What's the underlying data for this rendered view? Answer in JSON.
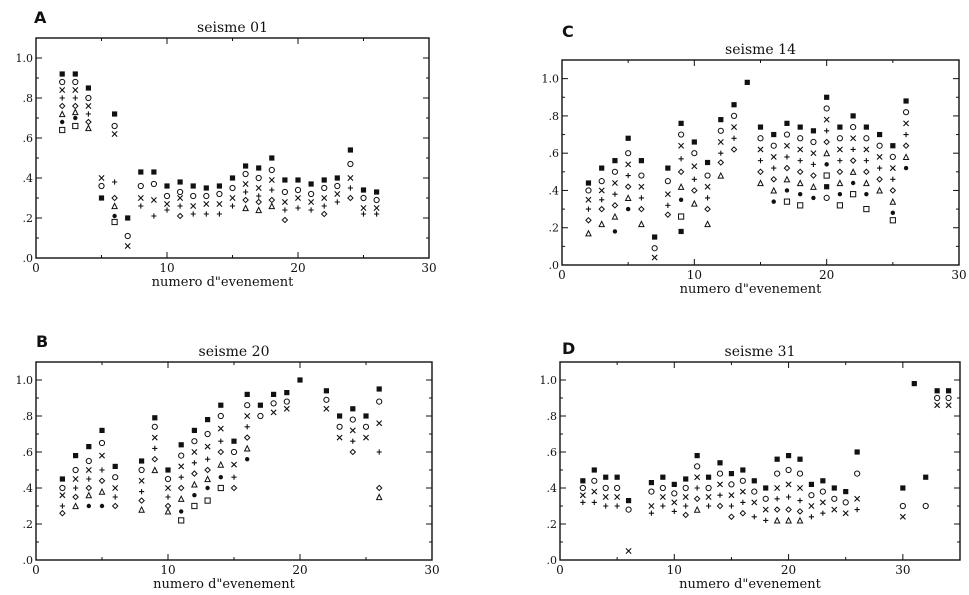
{
  "chart_data": [
    {
      "panel_letter": "A",
      "title": "seisme 01",
      "type": "scatter",
      "xlabel": "numero d\"evenement",
      "ylabel": "",
      "xlim": [
        0,
        30
      ],
      "ylim": [
        0,
        1.1
      ],
      "x_ticks": [
        "0",
        "10",
        "20",
        "30"
      ],
      "y_ticks": [
        ".0",
        ".2",
        ".4",
        ".6",
        ".8",
        "1.0"
      ],
      "columns": [
        {
          "x": 2,
          "values": [
            0.92,
            0.88,
            0.84,
            0.8,
            0.76,
            0.72,
            0.68,
            0.64
          ]
        },
        {
          "x": 3,
          "values": [
            0.92,
            0.88,
            0.84,
            0.8,
            0.76,
            0.73,
            0.7,
            0.66
          ]
        },
        {
          "x": 4,
          "values": [
            0.85,
            0.8,
            0.76,
            0.72,
            0.68,
            0.65
          ]
        },
        {
          "x": 5,
          "values": [
            0.3,
            0.36,
            0.4
          ]
        },
        {
          "x": 6,
          "values": [
            0.72,
            0.66,
            0.62,
            0.38,
            0.3,
            0.26,
            0.21,
            0.18
          ]
        },
        {
          "x": 7,
          "values": [
            0.2,
            0.11,
            0.06
          ]
        },
        {
          "x": 8,
          "values": [
            0.43,
            0.36,
            0.3,
            0.26
          ]
        },
        {
          "x": 9,
          "values": [
            0.43,
            0.37,
            0.29,
            0.21
          ]
        },
        {
          "x": 10,
          "values": [
            0.36,
            0.31,
            0.27,
            0.24
          ]
        },
        {
          "x": 11,
          "values": [
            0.38,
            0.33,
            0.3,
            0.26,
            0.21
          ]
        },
        {
          "x": 12,
          "values": [
            0.36,
            0.31,
            0.26,
            0.22
          ]
        },
        {
          "x": 13,
          "values": [
            0.35,
            0.31,
            0.27,
            0.22
          ]
        },
        {
          "x": 14,
          "values": [
            0.36,
            0.32,
            0.27,
            0.22
          ]
        },
        {
          "x": 15,
          "values": [
            0.4,
            0.35,
            0.3,
            0.26
          ]
        },
        {
          "x": 16,
          "values": [
            0.46,
            0.42,
            0.37,
            0.33,
            0.29,
            0.25
          ]
        },
        {
          "x": 17,
          "values": [
            0.45,
            0.4,
            0.35,
            0.31,
            0.28,
            0.24
          ]
        },
        {
          "x": 18,
          "values": [
            0.5,
            0.44,
            0.39,
            0.34,
            0.29,
            0.26
          ]
        },
        {
          "x": 19,
          "values": [
            0.39,
            0.33,
            0.28,
            0.24,
            0.19
          ]
        },
        {
          "x": 20,
          "values": [
            0.39,
            0.34,
            0.3,
            0.25
          ]
        },
        {
          "x": 21,
          "values": [
            0.37,
            0.32,
            0.28,
            0.24
          ]
        },
        {
          "x": 22,
          "values": [
            0.39,
            0.35,
            0.3,
            0.26,
            0.22
          ]
        },
        {
          "x": 23,
          "values": [
            0.4,
            0.36,
            0.32,
            0.28
          ]
        },
        {
          "x": 24,
          "values": [
            0.54,
            0.47,
            0.4,
            0.35,
            0.3
          ]
        },
        {
          "x": 25,
          "values": [
            0.34,
            0.3,
            0.25,
            0.22
          ]
        },
        {
          "x": 26,
          "values": [
            0.33,
            0.29,
            0.25,
            0.22
          ]
        }
      ]
    },
    {
      "panel_letter": "B",
      "title": "seisme 20",
      "type": "scatter",
      "xlabel": "numero d\"evenement",
      "ylabel": "",
      "xlim": [
        0,
        30
      ],
      "ylim": [
        0,
        1.1
      ],
      "x_ticks": [
        "0",
        "10",
        "20",
        "30"
      ],
      "y_ticks": [
        ".0",
        ".2",
        ".4",
        ".6",
        ".8",
        "1.0"
      ],
      "columns": [
        {
          "x": 2,
          "values": [
            0.45,
            0.4,
            0.36,
            0.3,
            0.26
          ]
        },
        {
          "x": 3,
          "values": [
            0.58,
            0.5,
            0.45,
            0.4,
            0.35,
            0.3
          ]
        },
        {
          "x": 4,
          "values": [
            0.63,
            0.55,
            0.5,
            0.45,
            0.4,
            0.36,
            0.3
          ]
        },
        {
          "x": 5,
          "values": [
            0.72,
            0.65,
            0.58,
            0.5,
            0.44,
            0.38,
            0.3
          ]
        },
        {
          "x": 6,
          "values": [
            0.52,
            0.46,
            0.4,
            0.35,
            0.3
          ]
        },
        {
          "x": 8,
          "values": [
            0.55,
            0.5,
            0.44,
            0.38,
            0.33,
            0.28
          ]
        },
        {
          "x": 9,
          "values": [
            0.79,
            0.74,
            0.68,
            0.62,
            0.56,
            0.5
          ]
        },
        {
          "x": 10,
          "values": [
            0.5,
            0.45,
            0.4,
            0.35,
            0.3,
            0.27
          ]
        },
        {
          "x": 11,
          "values": [
            0.64,
            0.58,
            0.52,
            0.46,
            0.4,
            0.34,
            0.27,
            0.22
          ]
        },
        {
          "x": 12,
          "values": [
            0.72,
            0.66,
            0.6,
            0.54,
            0.48,
            0.42,
            0.36,
            0.3
          ]
        },
        {
          "x": 13,
          "values": [
            0.78,
            0.7,
            0.63,
            0.56,
            0.5,
            0.45,
            0.4,
            0.33
          ]
        },
        {
          "x": 14,
          "values": [
            0.86,
            0.8,
            0.73,
            0.66,
            0.6,
            0.53,
            0.46,
            0.4
          ]
        },
        {
          "x": 15,
          "values": [
            0.66,
            0.6,
            0.53,
            0.46,
            0.4
          ]
        },
        {
          "x": 16,
          "values": [
            0.92,
            0.86,
            0.8,
            0.74,
            0.68,
            0.62,
            0.56
          ]
        },
        {
          "x": 17,
          "values": [
            0.86,
            0.8
          ]
        },
        {
          "x": 18,
          "values": [
            0.92,
            0.87,
            0.82
          ]
        },
        {
          "x": 19,
          "values": [
            0.93,
            0.88,
            0.84
          ]
        },
        {
          "x": 20,
          "values": [
            1.0
          ]
        },
        {
          "x": 22,
          "values": [
            0.94,
            0.89,
            0.84
          ]
        },
        {
          "x": 23,
          "values": [
            0.8,
            0.74,
            0.68
          ]
        },
        {
          "x": 24,
          "values": [
            0.84,
            0.78,
            0.72,
            0.66,
            0.6
          ]
        },
        {
          "x": 25,
          "values": [
            0.8,
            0.74,
            0.68
          ]
        },
        {
          "x": 26,
          "values": [
            0.95,
            0.88,
            0.76,
            0.6,
            0.4,
            0.35
          ]
        }
      ]
    },
    {
      "panel_letter": "C",
      "title": "seisme 14",
      "type": "scatter",
      "xlabel": "numero d\"evenement",
      "ylabel": "",
      "xlim": [
        0,
        30
      ],
      "ylim": [
        0,
        1.1
      ],
      "x_ticks": [
        "0",
        "10",
        "20",
        "30"
      ],
      "y_ticks": [
        ".0",
        ".2",
        ".4",
        ".6",
        ".8",
        "1.0"
      ],
      "columns": [
        {
          "x": 2,
          "values": [
            0.44,
            0.4,
            0.35,
            0.3,
            0.24,
            0.17
          ]
        },
        {
          "x": 3,
          "values": [
            0.52,
            0.45,
            0.4,
            0.35,
            0.3,
            0.22
          ]
        },
        {
          "x": 4,
          "values": [
            0.56,
            0.5,
            0.44,
            0.38,
            0.32,
            0.26,
            0.18
          ]
        },
        {
          "x": 5,
          "values": [
            0.68,
            0.6,
            0.54,
            0.48,
            0.42,
            0.36,
            0.3
          ]
        },
        {
          "x": 6,
          "values": [
            0.56,
            0.48,
            0.42,
            0.36,
            0.3,
            0.22
          ]
        },
        {
          "x": 7,
          "values": [
            0.15,
            0.09,
            0.04
          ]
        },
        {
          "x": 8,
          "values": [
            0.52,
            0.45,
            0.38,
            0.32,
            0.27
          ]
        },
        {
          "x": 9,
          "values": [
            0.76,
            0.7,
            0.64,
            0.57,
            0.5,
            0.42,
            0.35,
            0.26,
            0.18
          ]
        },
        {
          "x": 10,
          "values": [
            0.66,
            0.6,
            0.53,
            0.46,
            0.4,
            0.33
          ]
        },
        {
          "x": 11,
          "values": [
            0.55,
            0.48,
            0.42,
            0.36,
            0.3,
            0.22
          ]
        },
        {
          "x": 12,
          "values": [
            0.78,
            0.72,
            0.66,
            0.6,
            0.55,
            0.48
          ]
        },
        {
          "x": 13,
          "values": [
            0.86,
            0.8,
            0.74,
            0.68,
            0.62
          ]
        },
        {
          "x": 14,
          "values": [
            0.98
          ]
        },
        {
          "x": 15,
          "values": [
            0.74,
            0.68,
            0.62,
            0.56,
            0.5,
            0.44
          ]
        },
        {
          "x": 16,
          "values": [
            0.7,
            0.64,
            0.58,
            0.52,
            0.46,
            0.4,
            0.34
          ]
        },
        {
          "x": 17,
          "values": [
            0.76,
            0.7,
            0.64,
            0.58,
            0.52,
            0.46,
            0.4,
            0.34
          ]
        },
        {
          "x": 18,
          "values": [
            0.74,
            0.68,
            0.62,
            0.56,
            0.5,
            0.44,
            0.38,
            0.32
          ]
        },
        {
          "x": 19,
          "values": [
            0.72,
            0.66,
            0.6,
            0.54,
            0.48,
            0.42,
            0.36
          ]
        },
        {
          "x": 20,
          "values": [
            0.9,
            0.84,
            0.78,
            0.72,
            0.66,
            0.6,
            0.54,
            0.48,
            0.42,
            0.36
          ]
        },
        {
          "x": 21,
          "values": [
            0.74,
            0.68,
            0.62,
            0.56,
            0.5,
            0.44,
            0.38,
            0.32
          ]
        },
        {
          "x": 22,
          "values": [
            0.8,
            0.74,
            0.68,
            0.62,
            0.56,
            0.5,
            0.44,
            0.38
          ]
        },
        {
          "x": 23,
          "values": [
            0.74,
            0.68,
            0.62,
            0.56,
            0.5,
            0.44,
            0.38,
            0.3
          ]
        },
        {
          "x": 24,
          "values": [
            0.7,
            0.64,
            0.58,
            0.52,
            0.46,
            0.4
          ]
        },
        {
          "x": 25,
          "values": [
            0.64,
            0.58,
            0.52,
            0.46,
            0.4,
            0.34,
            0.28,
            0.24
          ]
        },
        {
          "x": 26,
          "values": [
            0.88,
            0.82,
            0.76,
            0.7,
            0.64,
            0.58,
            0.52
          ]
        }
      ]
    },
    {
      "panel_letter": "D",
      "title": "seisme 31",
      "type": "scatter",
      "xlabel": "numero d\"evenement",
      "ylabel": "",
      "xlim": [
        0,
        35
      ],
      "ylim": [
        0,
        1.1
      ],
      "x_ticks": [
        "0",
        "10",
        "20",
        "30"
      ],
      "y_ticks": [
        ".0",
        ".2",
        ".4",
        ".6",
        ".8",
        "1.0"
      ],
      "columns": [
        {
          "x": 2,
          "values": [
            0.44,
            0.4,
            0.36,
            0.32
          ]
        },
        {
          "x": 3,
          "values": [
            0.5,
            0.44,
            0.38,
            0.32
          ]
        },
        {
          "x": 4,
          "values": [
            0.46,
            0.4,
            0.35,
            0.3
          ]
        },
        {
          "x": 5,
          "values": [
            0.46,
            0.4,
            0.35,
            0.3
          ]
        },
        {
          "x": 6,
          "values": [
            0.33,
            0.28,
            0.05
          ]
        },
        {
          "x": 8,
          "values": [
            0.43,
            0.38,
            0.3,
            0.26
          ]
        },
        {
          "x": 9,
          "values": [
            0.46,
            0.4,
            0.35,
            0.3
          ]
        },
        {
          "x": 10,
          "values": [
            0.42,
            0.37,
            0.32,
            0.27
          ]
        },
        {
          "x": 11,
          "values": [
            0.45,
            0.4,
            0.35,
            0.3,
            0.25
          ]
        },
        {
          "x": 12,
          "values": [
            0.58,
            0.52,
            0.46,
            0.4,
            0.34,
            0.28
          ]
        },
        {
          "x": 13,
          "values": [
            0.46,
            0.4,
            0.35,
            0.3
          ]
        },
        {
          "x": 14,
          "values": [
            0.54,
            0.48,
            0.42,
            0.36,
            0.3
          ]
        },
        {
          "x": 15,
          "values": [
            0.48,
            0.42,
            0.36,
            0.3,
            0.24
          ]
        },
        {
          "x": 16,
          "values": [
            0.5,
            0.44,
            0.38,
            0.32,
            0.26
          ]
        },
        {
          "x": 17,
          "values": [
            0.44,
            0.38,
            0.32,
            0.24
          ]
        },
        {
          "x": 18,
          "values": [
            0.4,
            0.34,
            0.28,
            0.22
          ]
        },
        {
          "x": 19,
          "values": [
            0.56,
            0.48,
            0.4,
            0.34,
            0.28,
            0.22
          ]
        },
        {
          "x": 20,
          "values": [
            0.58,
            0.5,
            0.42,
            0.35,
            0.28,
            0.22
          ]
        },
        {
          "x": 21,
          "values": [
            0.56,
            0.48,
            0.4,
            0.33,
            0.27,
            0.22
          ]
        },
        {
          "x": 22,
          "values": [
            0.42,
            0.36,
            0.3,
            0.24
          ]
        },
        {
          "x": 23,
          "values": [
            0.44,
            0.38,
            0.32,
            0.26
          ]
        },
        {
          "x": 24,
          "values": [
            0.4,
            0.34,
            0.28
          ]
        },
        {
          "x": 25,
          "values": [
            0.38,
            0.32,
            0.26
          ]
        },
        {
          "x": 26,
          "values": [
            0.6,
            0.48,
            0.34,
            0.28
          ]
        },
        {
          "x": 30,
          "values": [
            0.4,
            0.3,
            0.24
          ]
        },
        {
          "x": 31,
          "values": [
            0.98
          ]
        },
        {
          "x": 32,
          "values": [
            0.46,
            0.3
          ]
        },
        {
          "x": 33,
          "values": [
            0.94,
            0.9,
            0.86
          ]
        },
        {
          "x": 34,
          "values": [
            0.94,
            0.9,
            0.86
          ]
        }
      ]
    }
  ]
}
